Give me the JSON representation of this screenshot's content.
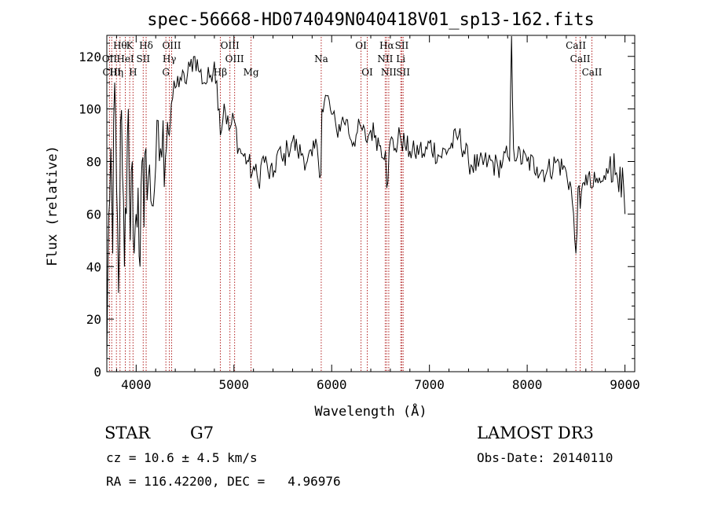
{
  "chart_data": {
    "type": "line",
    "title": "spec-56668-HD074049N040418V01_sp13-162.fits",
    "xlabel": "Wavelength (Å)",
    "ylabel": "Flux (relative)",
    "xlim": [
      3700,
      9100
    ],
    "ylim": [
      0,
      128
    ],
    "xticks": [
      4000,
      5000,
      6000,
      7000,
      8000,
      9000
    ],
    "yticks": [
      0,
      20,
      40,
      60,
      80,
      100,
      120
    ],
    "grid": false,
    "line_color": "#000000",
    "marker_color": "#b22222",
    "series": [
      {
        "x": [
          3700,
          3720,
          3740,
          3760,
          3780,
          3800,
          3820,
          3840,
          3860,
          3880,
          3900,
          3920,
          3940,
          3960,
          3980,
          4000,
          4020,
          4040,
          4060,
          4080,
          4100,
          4150,
          4200,
          4250,
          4300,
          4320,
          4340,
          4360,
          4400,
          4450,
          4500,
          4550,
          4600,
          4650,
          4700,
          4750,
          4800,
          4850,
          4861,
          4900,
          4950,
          5000,
          5050,
          5100,
          5150,
          5183,
          5200,
          5250,
          5300,
          5350,
          5400,
          5450,
          5500,
          5550,
          5600,
          5650,
          5700,
          5750,
          5800,
          5850,
          5890,
          5900,
          5950,
          6000,
          6050,
          6100,
          6150,
          6200,
          6250,
          6300,
          6350,
          6400,
          6450,
          6500,
          6550,
          6563,
          6600,
          6650,
          6700,
          6750,
          6800,
          6850,
          6900,
          6950,
          7000,
          7100,
          7200,
          7300,
          7400,
          7500,
          7600,
          7700,
          7750,
          7800,
          7820,
          7840,
          7860,
          7900,
          8000,
          8100,
          8200,
          8300,
          8400,
          8450,
          8498,
          8520,
          8542,
          8580,
          8600,
          8662,
          8700,
          8750,
          8800,
          8850,
          8900,
          8950,
          9000
        ],
        "y": [
          5,
          60,
          85,
          45,
          110,
          70,
          30,
          95,
          75,
          40,
          60,
          100,
          50,
          80,
          45,
          60,
          70,
          40,
          80,
          55,
          85,
          65,
          78,
          85,
          82,
          95,
          90,
          102,
          108,
          112,
          110,
          116,
          120,
          114,
          110,
          112,
          118,
          100,
          90,
          102,
          92,
          96,
          85,
          82,
          80,
          75,
          78,
          72,
          82,
          76,
          74,
          84,
          80,
          85,
          88,
          84,
          83,
          80,
          82,
          86,
          75,
          100,
          105,
          98,
          92,
          95,
          96,
          88,
          90,
          93,
          88,
          92,
          90,
          86,
          84,
          70,
          88,
          85,
          90,
          86,
          84,
          83,
          85,
          82,
          87,
          82,
          85,
          90,
          80,
          78,
          80,
          78,
          80,
          82,
          80,
          128,
          85,
          82,
          80,
          78,
          76,
          80,
          76,
          70,
          45,
          70,
          62,
          72,
          75,
          70,
          72,
          72,
          73,
          82,
          75,
          78,
          60
        ]
      }
    ],
    "lines_top": [
      {
        "wavelength": 3835,
        "label": "Hθ"
      },
      {
        "wavelength": 3934,
        "label": "K"
      },
      {
        "wavelength": 4102,
        "label": "Hδ"
      },
      {
        "wavelength": 4363,
        "label": "OIII"
      },
      {
        "wavelength": 4959,
        "label": "OIII"
      },
      {
        "wavelength": 6300,
        "label": "OI"
      },
      {
        "wavelength": 6563,
        "label": "Hα"
      },
      {
        "wavelength": 6717,
        "label": "SII"
      },
      {
        "wavelength": 8498,
        "label": "CaII"
      }
    ],
    "lines_mid": [
      {
        "wavelength": 3727,
        "label": "OII"
      },
      {
        "wavelength": 3889,
        "label": "HeI"
      },
      {
        "wavelength": 4072,
        "label": "SII"
      },
      {
        "wavelength": 4340,
        "label": "Hγ"
      },
      {
        "wavelength": 5007,
        "label": "OIII"
      },
      {
        "wavelength": 5893,
        "label": "Na"
      },
      {
        "wavelength": 6548,
        "label": "NII"
      },
      {
        "wavelength": 6707,
        "label": "Li"
      },
      {
        "wavelength": 8542,
        "label": "CaII"
      }
    ],
    "lines_bot": [
      {
        "wavelength": 3798,
        "label": "Hη"
      },
      {
        "wavelength": 3968,
        "label": "H"
      },
      {
        "wavelength": 4304,
        "label": "G"
      },
      {
        "wavelength": 4861,
        "label": "Hβ"
      },
      {
        "wavelength": 5175,
        "label": "Mg"
      },
      {
        "wavelength": 6364,
        "label": "OI"
      },
      {
        "wavelength": 6584,
        "label": "NII"
      },
      {
        "wavelength": 6731,
        "label": "SII"
      },
      {
        "wavelength": 8662,
        "label": "CaII"
      }
    ],
    "lines_extra": [
      {
        "wavelength": 3750,
        "label": "CIII"
      }
    ]
  },
  "info": {
    "object_class": "STAR",
    "subclass": "G7",
    "survey": "LAMOST DR3",
    "redshift_line": "cz = 10.6 ± 4.5 km/s",
    "obs_date_line": "Obs-Date: 20140110",
    "coords_line": "RA = 116.42200, DEC =   4.96976"
  }
}
